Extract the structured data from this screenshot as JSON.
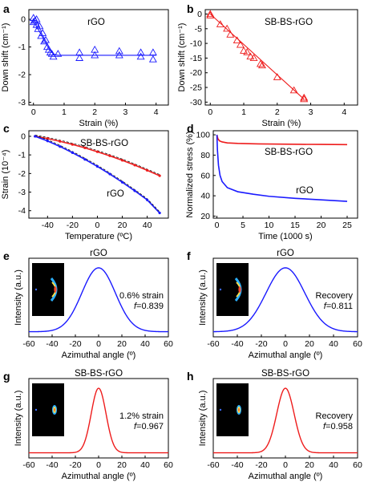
{
  "colors": {
    "blue": "#1a1aff",
    "red": "#ee1c1c",
    "axis": "#000000",
    "inset_bg": "#000000"
  },
  "chart_data": [
    {
      "panel": "a",
      "type": "scatter",
      "xlabel": "Strain (%)",
      "ylabel": "Down shift (cm⁻¹)",
      "xlim": [
        -0.15,
        4.4
      ],
      "ylim": [
        -3.1,
        0.35
      ],
      "xticks": [
        0,
        1,
        2,
        3,
        4
      ],
      "yticks": [
        0,
        -1,
        -2,
        -3
      ],
      "series": [
        {
          "name": "rGO",
          "color": "blue",
          "marker": "triangle",
          "x": [
            0,
            0,
            0.05,
            0.1,
            0.1,
            0.15,
            0.2,
            0.25,
            0.3,
            0.35,
            0.4,
            0.45,
            0.5,
            0.55,
            0.6,
            0.65,
            0.8,
            1.5,
            1.5,
            2.0,
            2.0,
            2.8,
            2.8,
            3.5,
            3.5,
            3.9,
            3.9
          ],
          "y": [
            0.05,
            -0.1,
            -0.05,
            -0.2,
            0.0,
            -0.35,
            -0.25,
            -0.6,
            -0.5,
            -0.8,
            -0.75,
            -1.0,
            -1.1,
            -1.2,
            -1.25,
            -1.35,
            -1.25,
            -1.4,
            -1.2,
            -1.3,
            -1.1,
            -1.3,
            -1.15,
            -1.35,
            -1.2,
            -1.45,
            -1.2
          ]
        }
      ],
      "fit": {
        "color": "blue",
        "x": [
          0,
          0.1,
          0.2,
          0.3,
          0.4,
          0.5,
          0.6,
          0.7,
          0.8,
          1.0,
          1.5,
          2,
          3,
          4
        ],
        "y": [
          -0.1,
          -0.25,
          -0.45,
          -0.65,
          -0.85,
          -1.05,
          -1.2,
          -1.28,
          -1.3,
          -1.3,
          -1.3,
          -1.3,
          -1.3,
          -1.3
        ]
      }
    },
    {
      "panel": "b",
      "type": "scatter",
      "xlabel": "Strain (%)",
      "ylabel": "Down shift (cm⁻¹)",
      "xlim": [
        -0.15,
        4.4
      ],
      "ylim": [
        -31,
        1.5
      ],
      "xticks": [
        0,
        1,
        2,
        3,
        4
      ],
      "yticks": [
        0,
        -5,
        -10,
        -15,
        -20,
        -25,
        -30
      ],
      "series": [
        {
          "name": "SB-BS-rGO",
          "color": "red",
          "marker": "triangle",
          "x": [
            0,
            0,
            0.3,
            0.5,
            0.6,
            0.8,
            0.9,
            1.0,
            1.1,
            1.2,
            1.3,
            1.5,
            1.55,
            2.0,
            2.5,
            2.8,
            2.8
          ],
          "y": [
            0,
            -0.5,
            -3.5,
            -5.0,
            -7.0,
            -9.0,
            -10.5,
            -12.5,
            -13.0,
            -14.5,
            -15.0,
            -17.0,
            -17.5,
            -21.5,
            -26.0,
            -28.5,
            -29.0
          ]
        }
      ],
      "fit": {
        "color": "red",
        "x": [
          0,
          2.8
        ],
        "y": [
          0,
          -29
        ]
      }
    },
    {
      "panel": "c",
      "type": "line",
      "xlabel": "Temperature (ºC)",
      "ylabel": "Strain (10⁻⁴)",
      "xlim": [
        -55,
        57
      ],
      "ylim": [
        -4.4,
        0.3
      ],
      "xticks": [
        -40,
        -20,
        0,
        20,
        40
      ],
      "yticks": [
        0,
        -1,
        -2,
        -3,
        -4
      ],
      "series": [
        {
          "name": "SB-BS-rGO",
          "color": "red",
          "x": [
            -50,
            -40,
            -30,
            -20,
            -10,
            0,
            10,
            20,
            30,
            40,
            50
          ],
          "y": [
            0,
            -0.12,
            -0.27,
            -0.44,
            -0.62,
            -0.83,
            -1.05,
            -1.29,
            -1.55,
            -1.83,
            -2.12
          ]
        },
        {
          "name": "rGO",
          "color": "blue",
          "x": [
            -50,
            -40,
            -30,
            -20,
            -10,
            0,
            10,
            20,
            30,
            40,
            50
          ],
          "y": [
            0,
            -0.25,
            -0.55,
            -0.88,
            -1.24,
            -1.62,
            -2.03,
            -2.47,
            -2.93,
            -3.42,
            -4.12
          ]
        }
      ]
    },
    {
      "panel": "d",
      "type": "line",
      "xlabel": "Time (1000 s)",
      "ylabel": "Normalized stress (%)",
      "xlim": [
        -0.7,
        27
      ],
      "ylim": [
        18,
        104
      ],
      "xticks": [
        0,
        5,
        10,
        15,
        20,
        25
      ],
      "yticks": [
        20,
        40,
        60,
        80,
        100
      ],
      "series": [
        {
          "name": "SB-BS-rGO",
          "color": "red",
          "x": [
            0,
            0.2,
            0.5,
            1,
            2,
            4,
            8,
            12,
            16,
            20,
            25
          ],
          "y": [
            100,
            96,
            94,
            93,
            92,
            91.5,
            91,
            90.8,
            90.6,
            90.5,
            90.3
          ]
        },
        {
          "name": "rGO",
          "color": "blue",
          "x": [
            0,
            0.1,
            0.3,
            0.6,
            1,
            2,
            4,
            7,
            10,
            15,
            20,
            25
          ],
          "y": [
            100,
            85,
            70,
            60,
            54,
            48,
            44,
            41.5,
            39.5,
            37.5,
            36,
            34.5
          ]
        }
      ]
    },
    {
      "panel": "e",
      "type": "line",
      "xlabel": "Azimuthal angle (º)",
      "ylabel": "Intensity (a.u.)",
      "xlim": [
        -60,
        60
      ],
      "xticks": [
        -60,
        -40,
        -20,
        0,
        20,
        40,
        60
      ],
      "title": "rGO",
      "annotation": [
        "0.6% strain",
        "f=0.839"
      ],
      "series": [
        {
          "name": "rGO",
          "color": "blue",
          "peak": 0,
          "fwhm": 34,
          "baseline": 0.0,
          "height": 1.0
        }
      ]
    },
    {
      "panel": "f",
      "type": "line",
      "xlabel": "Azimuthal angle (º)",
      "ylabel": "Intensity (a.u.)",
      "xlim": [
        -60,
        60
      ],
      "xticks": [
        -60,
        -40,
        -20,
        0,
        20,
        40,
        60
      ],
      "title": "rGO",
      "annotation": [
        "Recovery",
        "f=0.811"
      ],
      "series": [
        {
          "name": "rGO",
          "color": "blue",
          "peak": 0,
          "fwhm": 38,
          "baseline": 0.0,
          "height": 1.0
        }
      ]
    },
    {
      "panel": "g",
      "type": "line",
      "xlabel": "Azimuthal angle (º)",
      "ylabel": "Intensity (a.u.)",
      "xlim": [
        -60,
        60
      ],
      "xticks": [
        -60,
        -40,
        -20,
        0,
        20,
        40,
        60
      ],
      "title": "SB-BS-rGO",
      "annotation": [
        "1.2% strain",
        "f=0.967"
      ],
      "series": [
        {
          "name": "SB-BS-rGO",
          "color": "red",
          "peak": 0,
          "fwhm": 15,
          "baseline": 0.0,
          "height": 1.0
        }
      ]
    },
    {
      "panel": "h",
      "type": "line",
      "xlabel": "Azimuthal angle (º)",
      "ylabel": "Intensity (a.u.)",
      "xlim": [
        -60,
        60
      ],
      "xticks": [
        -60,
        -40,
        -20,
        0,
        20,
        40,
        60
      ],
      "title": "SB-BS-rGO",
      "annotation": [
        "Recovery",
        "f=0.958"
      ],
      "series": [
        {
          "name": "SB-BS-rGO",
          "color": "red",
          "peak": 0,
          "fwhm": 17,
          "baseline": 0.0,
          "height": 1.0
        }
      ]
    }
  ]
}
